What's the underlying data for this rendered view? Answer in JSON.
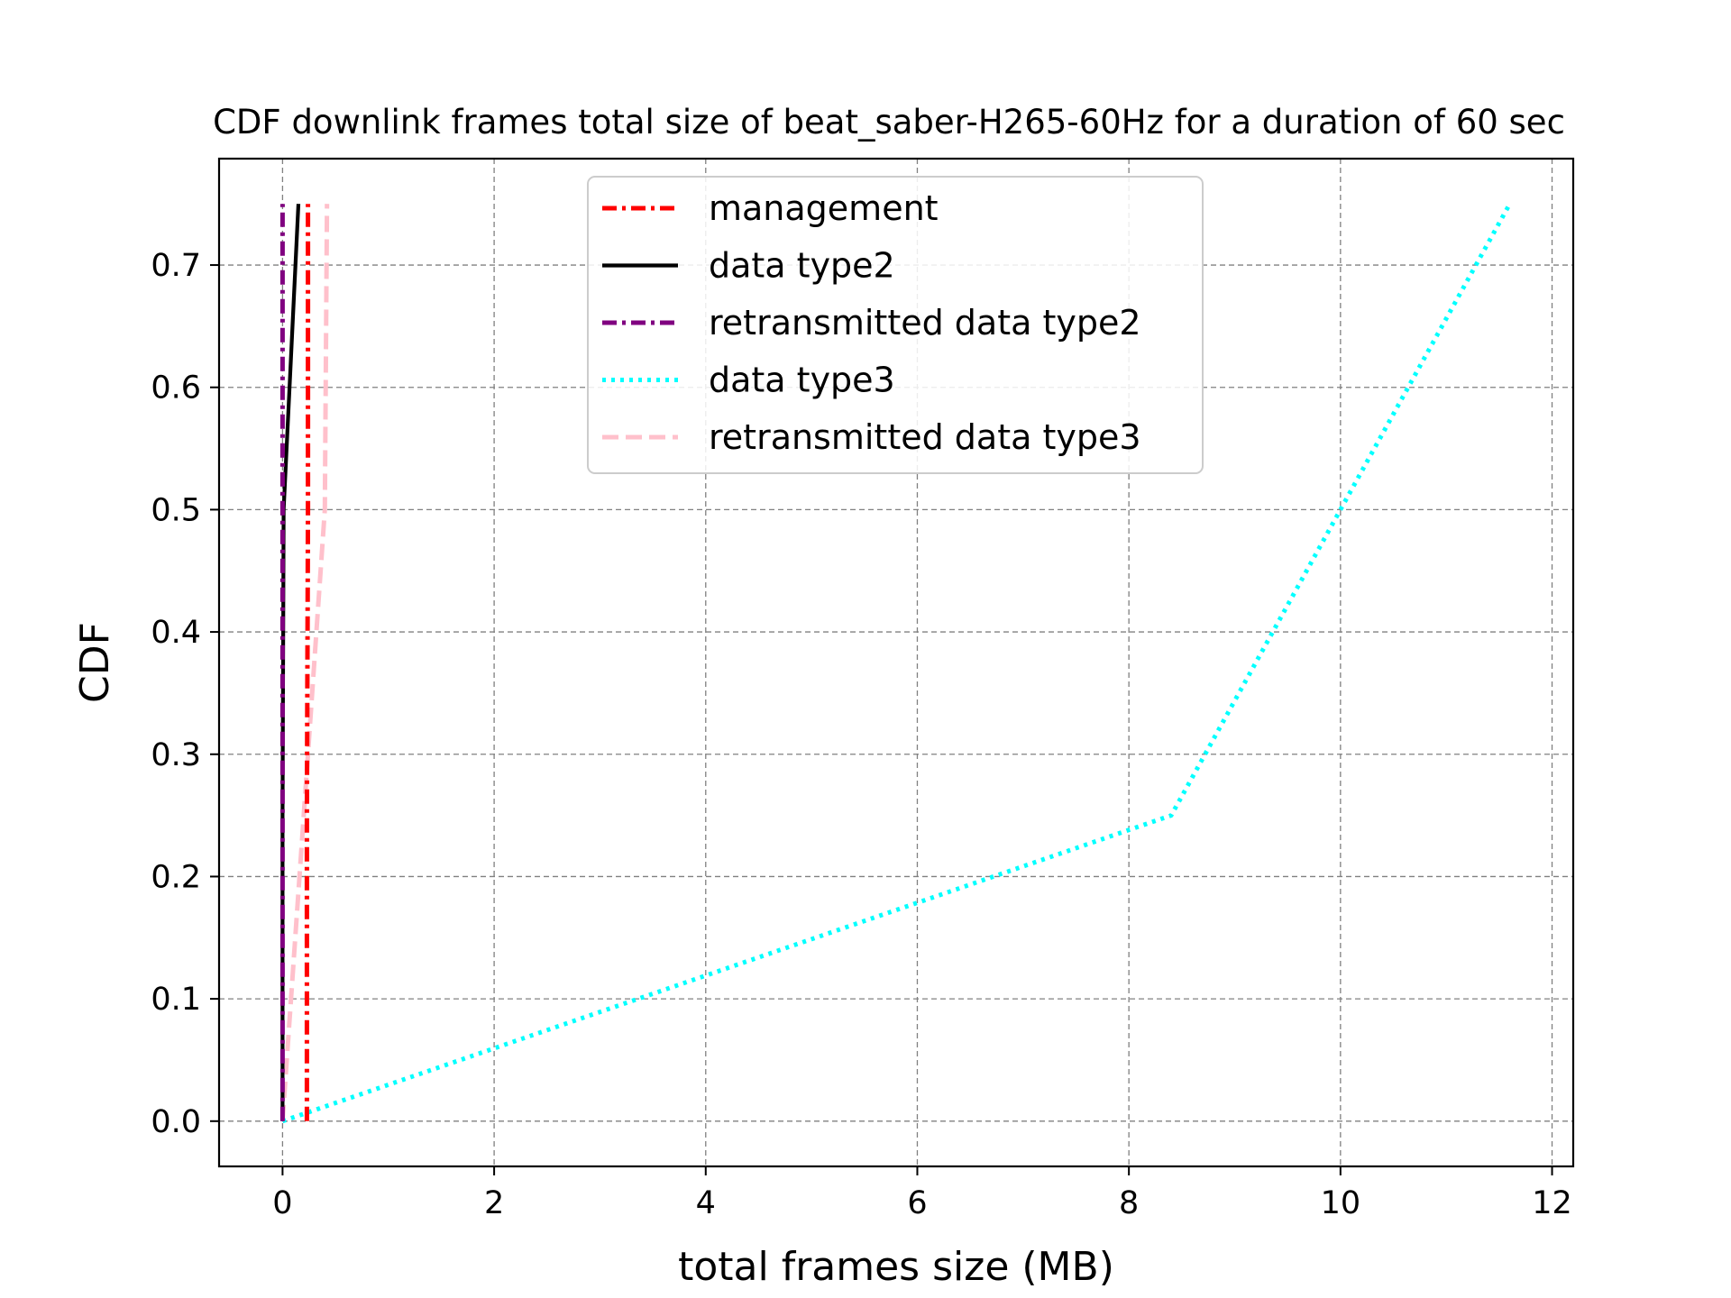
{
  "chart_data": {
    "type": "line",
    "title": "CDF downlink frames total size of beat_saber-H265-60Hz for a duration of 60 sec",
    "xlabel": "total frames size (MB)",
    "ylabel": "CDF",
    "xlim": [
      -0.6,
      12.2
    ],
    "ylim": [
      -0.037,
      0.787
    ],
    "xticks": [
      0,
      2,
      4,
      6,
      8,
      10,
      12
    ],
    "yticks": [
      0.0,
      0.1,
      0.2,
      0.3,
      0.4,
      0.5,
      0.6,
      0.7
    ],
    "xtick_labels": [
      "0",
      "2",
      "4",
      "6",
      "8",
      "10",
      "12"
    ],
    "ytick_labels": [
      "0.0",
      "0.1",
      "0.2",
      "0.3",
      "0.4",
      "0.5",
      "0.6",
      "0.7"
    ],
    "grid": true,
    "legend_position": "top-center",
    "series": [
      {
        "name": "management",
        "color": "#ff0000",
        "style": "dashdot",
        "x": [
          0.23,
          0.23,
          0.24,
          0.24
        ],
        "y": [
          0.0,
          0.25,
          0.5,
          0.75
        ]
      },
      {
        "name": "data type2",
        "color": "#000000",
        "style": "solid",
        "x": [
          0.0,
          0.0,
          0.01,
          0.15
        ],
        "y": [
          0.0,
          0.25,
          0.5,
          0.75
        ]
      },
      {
        "name": "retransmitted data type2",
        "color": "#800080",
        "style": "dashdot",
        "x": [
          0.0,
          0.0,
          0.0,
          0.0
        ],
        "y": [
          0.0,
          0.25,
          0.5,
          0.75
        ]
      },
      {
        "name": "data type3",
        "color": "#00ffff",
        "style": "dotted",
        "x": [
          0.0,
          8.4,
          10.0,
          11.6
        ],
        "y": [
          0.0,
          0.25,
          0.5,
          0.75
        ]
      },
      {
        "name": "retransmitted data type3",
        "color": "#ffc0cb",
        "style": "dashed",
        "x": [
          0.0,
          0.2,
          0.4,
          0.42
        ],
        "y": [
          0.0,
          0.25,
          0.5,
          0.75
        ]
      }
    ]
  }
}
